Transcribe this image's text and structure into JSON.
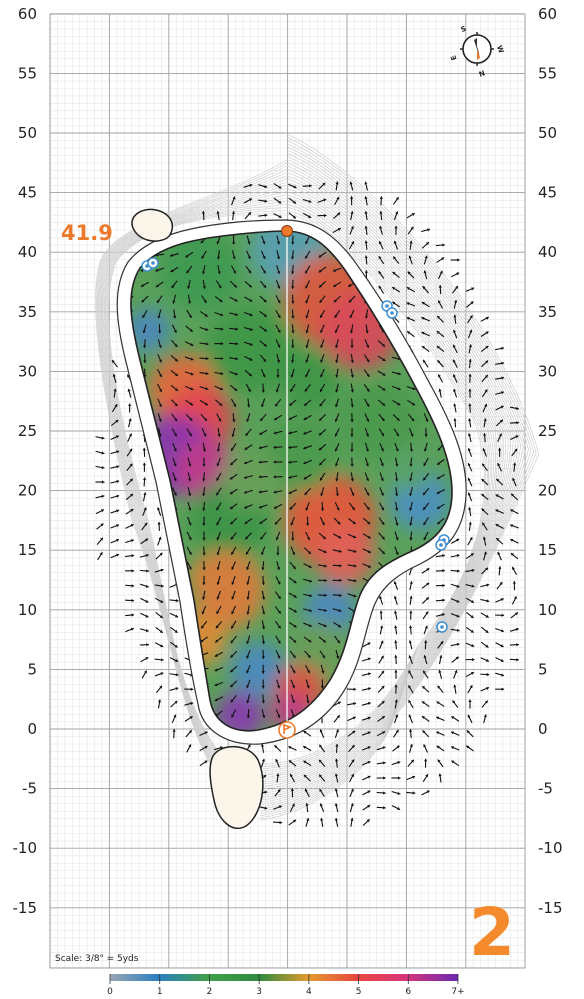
{
  "map": {
    "hole_number": "2",
    "distance_label": "41.9",
    "scale_note": "Scale: 3/8\" = 5yds",
    "y_axis_ticks": [
      "60",
      "55",
      "50",
      "45",
      "40",
      "35",
      "30",
      "25",
      "20",
      "15",
      "10",
      "5",
      "0",
      "-5",
      "-10",
      "-15"
    ],
    "compass": {
      "labels": [
        "S",
        "W",
        "N",
        "E"
      ]
    },
    "legend": {
      "labels": [
        "0",
        "1",
        "2",
        "3",
        "4",
        "5",
        "6",
        "7+"
      ],
      "colors": [
        "#8a9bab",
        "#2b7fc0",
        "#3a9a4c",
        "#2f8a3f",
        "#e39a2e",
        "#e8473f",
        "#d8347a",
        "#7a2bb0"
      ]
    },
    "colors": {
      "accent": "#f48a2c",
      "grid_minor": "#e2e2e2",
      "grid_major": "#9c9c9c",
      "green_outline": "#222222",
      "bunker_fill": "#fbf5ea",
      "sprinkler": "#3e8fd1"
    },
    "markers": {
      "flag_icon": "flag-icon",
      "pin_icon": "pin-marker-icon",
      "sprinkler_icon": "sprinkler-icon"
    }
  }
}
